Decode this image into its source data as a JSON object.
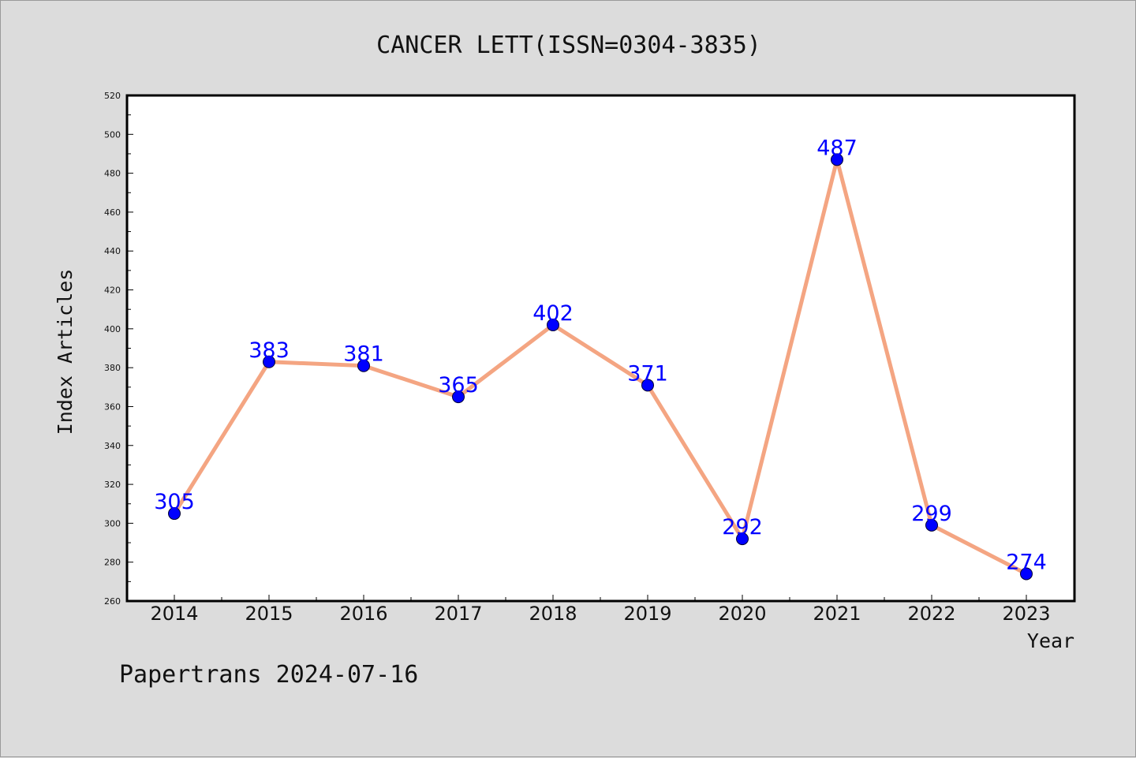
{
  "footer": {
    "text": "Papertrans 2024-07-16"
  },
  "chart_data": {
    "type": "line",
    "title": "CANCER LETT(ISSN=0304-3835)",
    "xlabel": "Year",
    "ylabel": "Index Articles",
    "categories": [
      "2014",
      "2015",
      "2016",
      "2017",
      "2018",
      "2019",
      "2020",
      "2021",
      "2022",
      "2023"
    ],
    "series": [
      {
        "values": [
          305,
          383,
          381,
          365,
          402,
          371,
          292,
          487,
          299,
          274
        ]
      }
    ],
    "data_labels": [
      "305",
      "383",
      "381",
      "365",
      "402",
      "371",
      "292",
      "487",
      "299",
      "274"
    ],
    "ylim": [
      260,
      520
    ],
    "yticks": [
      "260",
      "280",
      "300",
      "320",
      "340",
      "360",
      "380",
      "400",
      "420",
      "440",
      "460",
      "480",
      "500",
      "520"
    ],
    "grid": false,
    "line_color": "#f4a582",
    "marker_color": "#0000ff",
    "label_color": "#0000ff",
    "plot_background": "#ffffff",
    "figure_background": "#dcdcdc"
  }
}
